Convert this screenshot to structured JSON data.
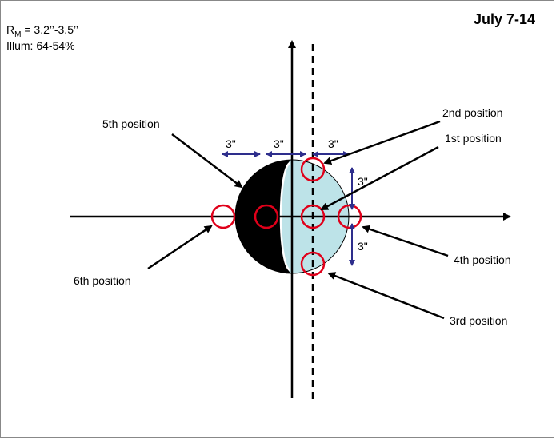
{
  "title": "July 7-14",
  "info": {
    "radius_symbol": "R",
    "radius_subscript": "M",
    "radius_value": " = 3.2’’-3.5’’",
    "illumination": "Illum: 64-54%"
  },
  "positions": [
    "1st position",
    "2nd position",
    "3rd position",
    "4th position",
    "5th position",
    "6th position"
  ],
  "spacings": [
    "3\"",
    "3\"",
    "3\"",
    "3\"",
    "3\""
  ]
}
